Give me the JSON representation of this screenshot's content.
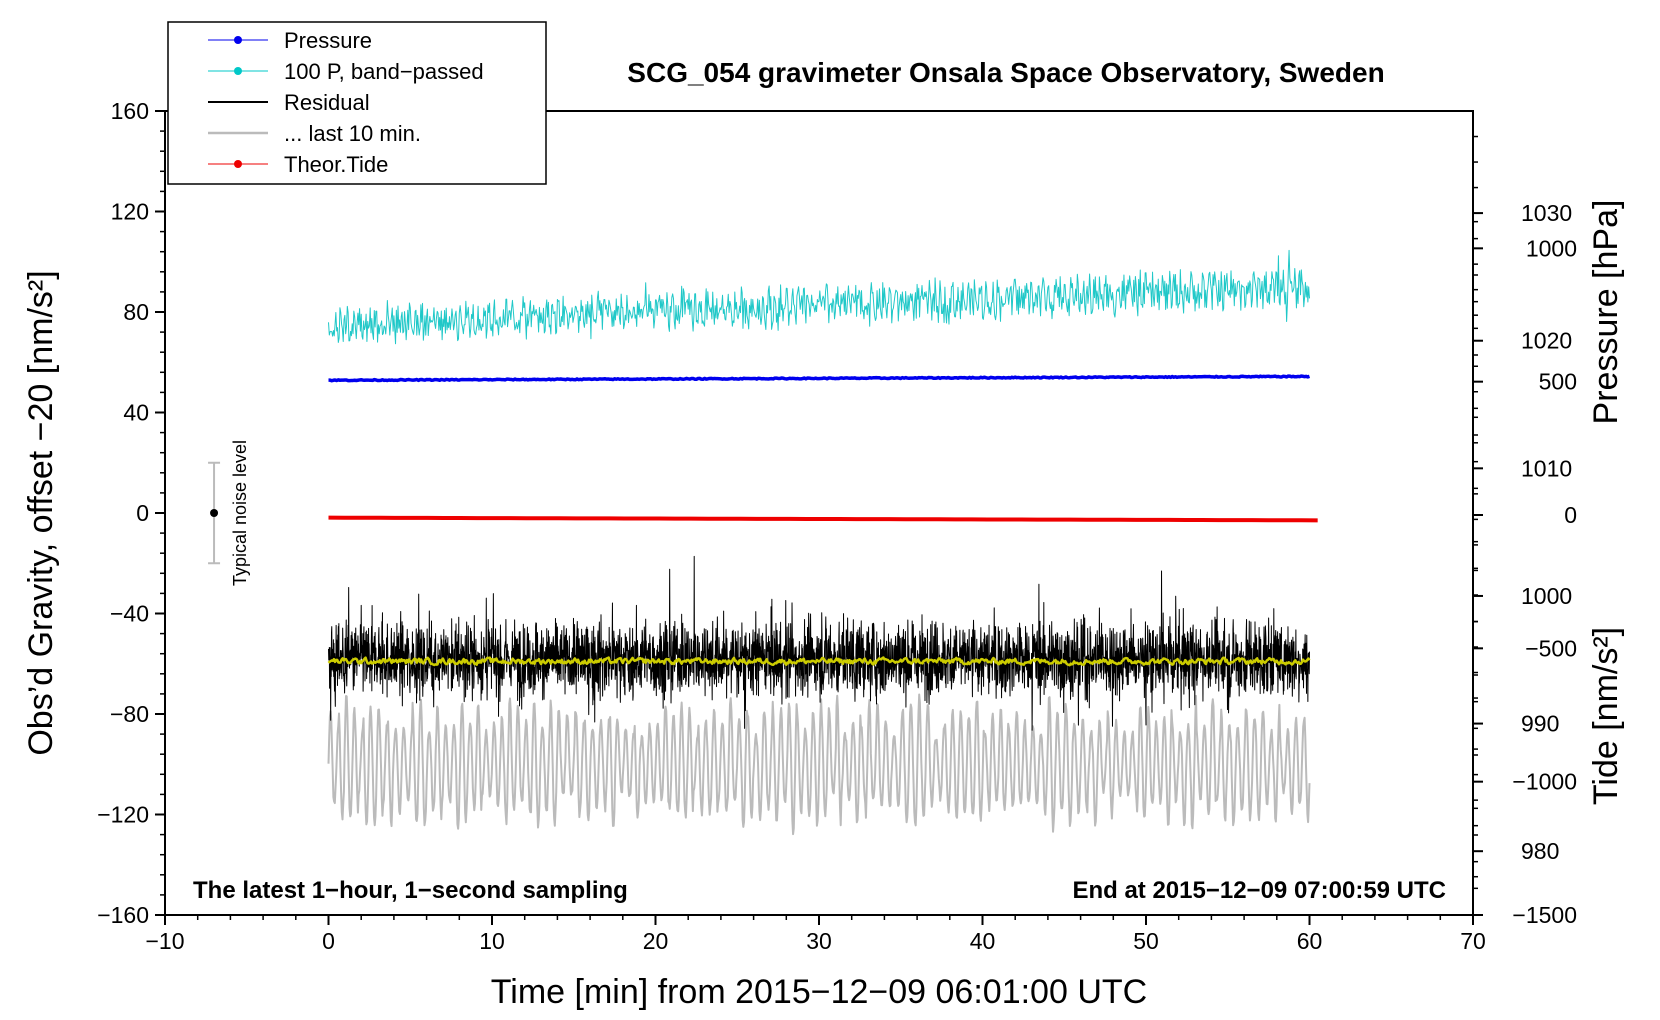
{
  "chart_data": {
    "type": "line",
    "title": "SCG_054 gravimeter Onsala Space Observatory, Sweden",
    "xlabel": "Time [min] from 2015−12−09 06:01:00 UTC",
    "ylabel_left": "Obs’d Gravity, offset −20 [nm/s²]",
    "ylabel_right_pressure": "Pressure [hPa]",
    "ylabel_right_tide": "Tide [nm/s²]",
    "xlim": [
      -10,
      70
    ],
    "ylim_left": [
      -160,
      160
    ],
    "ylim_pressure": [
      975,
      1038
    ],
    "ylim_tide": [
      -1500,
      1500
    ],
    "x_ticks": [
      {
        "v": -10,
        "label": "−10"
      },
      {
        "v": 0,
        "label": "0"
      },
      {
        "v": 10,
        "label": "10"
      },
      {
        "v": 20,
        "label": "20"
      },
      {
        "v": 30,
        "label": "30"
      },
      {
        "v": 40,
        "label": "40"
      },
      {
        "v": 50,
        "label": "50"
      },
      {
        "v": 60,
        "label": "60"
      },
      {
        "v": 70,
        "label": "70"
      }
    ],
    "y_left_ticks": [
      {
        "v": 160,
        "label": "160"
      },
      {
        "v": 120,
        "label": "120"
      },
      {
        "v": 80,
        "label": "80"
      },
      {
        "v": 40,
        "label": "40"
      },
      {
        "v": 0,
        "label": "0"
      },
      {
        "v": -40,
        "label": "−40"
      },
      {
        "v": -80,
        "label": "−80"
      },
      {
        "v": -120,
        "label": "−120"
      },
      {
        "v": -160,
        "label": "−160"
      }
    ],
    "y_pressure_ticks": [
      {
        "v": 1030,
        "label": "1030"
      },
      {
        "v": 1020,
        "label": "1020"
      },
      {
        "v": 1010,
        "label": "1010"
      },
      {
        "v": 1000,
        "label": "1000"
      },
      {
        "v": 990,
        "label": "990"
      },
      {
        "v": 980,
        "label": "980"
      }
    ],
    "y_tide_ticks": [
      {
        "v": 1000,
        "label": "1000"
      },
      {
        "v": 500,
        "label": "500"
      },
      {
        "v": 0,
        "label": "0"
      },
      {
        "v": -500,
        "label": "−500"
      },
      {
        "v": -1000,
        "label": "−1000"
      },
      {
        "v": -1500,
        "label": "−1500"
      }
    ],
    "legend": [
      {
        "label": "Pressure",
        "color": "#0000ee",
        "marker": true
      },
      {
        "label": "100 P, band−passed",
        "color": "#00c8c8",
        "marker": true
      },
      {
        "label": "Residual",
        "color": "#000000",
        "marker": false
      },
      {
        "label": "... last 10 min.",
        "color": "#bbbbbb",
        "marker": false
      },
      {
        "label": "Theor.Tide",
        "color": "#ee0000",
        "marker": true
      }
    ],
    "legend_position": "top-left",
    "series": [
      {
        "name": "Pressure",
        "axis": "pressure",
        "color": "#0000ee",
        "x_range": [
          0,
          60
        ],
        "start": 1016.9,
        "end": 1017.2,
        "noise": 0.15
      },
      {
        "name": "100 P, band−passed",
        "axis": "left",
        "color": "#20c8c8",
        "x_range": [
          0,
          60
        ],
        "start": 75,
        "end": 90,
        "noise": 7.5
      },
      {
        "name": "Residual",
        "axis": "left",
        "color": "#000000",
        "x_range": [
          0,
          60
        ],
        "start": -58,
        "end": -58,
        "noise": 13
      },
      {
        "name": "... last 10 min.",
        "axis": "left",
        "color": "#bbbbbb",
        "x_range": [
          0,
          60
        ],
        "start": -100,
        "end": -100,
        "noise": 20
      },
      {
        "name": "Smoothed residual",
        "axis": "left",
        "color": "#cccc00",
        "x_range": [
          0,
          60
        ],
        "start": -59,
        "end": -59,
        "noise": 1.2
      },
      {
        "name": "Theor.Tide",
        "axis": "tide",
        "color": "#ee0000",
        "x_range": [
          0,
          60.5
        ],
        "start": -10,
        "end": -20,
        "noise": 0
      }
    ],
    "noise_bar": {
      "x": -7,
      "center": 0,
      "low": -20,
      "high": 20,
      "label": "Typical noise level"
    },
    "annotation_left": "The latest 1−hour, 1−second sampling",
    "annotation_right": "End at 2015−12−09 07:00:59 UTC"
  }
}
